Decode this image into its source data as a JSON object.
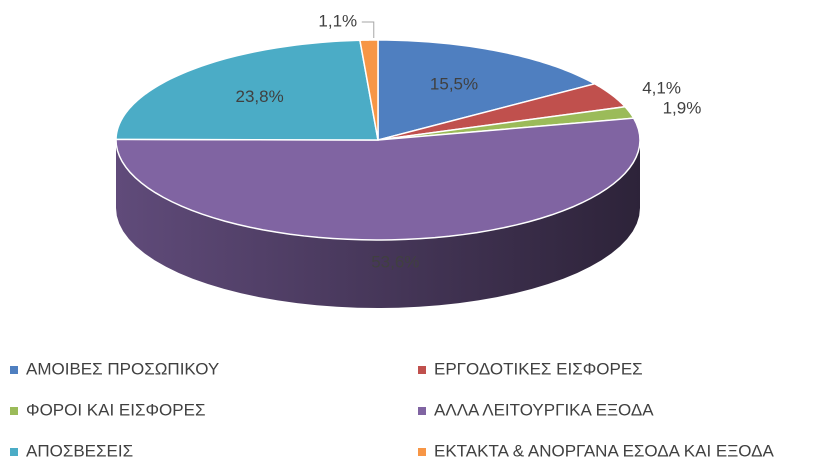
{
  "chart_data": {
    "type": "pie3d",
    "categories": [
      "ΑΜΟΙΒΕΣ ΠΡΟΣΩΠΙΚΟΥ",
      "ΕΡΓΟΔΟΤΙΚΕΣ ΕΙΣΦΟΡΕΣ",
      "ΦΟΡΟΙ ΚΑΙ ΕΙΣΦΟΡΕΣ",
      "ΑΛΛΑ ΛΕΙΤΟΥΡΓΙΚΑ ΕΞΟΔΑ",
      "ΑΠΟΣΒΕΣΕΙΣ",
      "ΕΚΤΑΚΤΑ & ΑΝΟΡΓΑΝΑ ΕΣΟΔΑ ΚΑΙ ΕΞΟΔΑ"
    ],
    "values": [
      15.5,
      4.1,
      1.9,
      53.6,
      23.8,
      1.1
    ],
    "value_labels": [
      "15,5%",
      "4,1%",
      "1,9%",
      "53,6%",
      "23,8%",
      "1,1%"
    ],
    "colors": [
      "#4f7fc0",
      "#c0504d",
      "#9bbb59",
      "#8064a2",
      "#4bacc6",
      "#f79646"
    ],
    "legend": "bottom"
  }
}
